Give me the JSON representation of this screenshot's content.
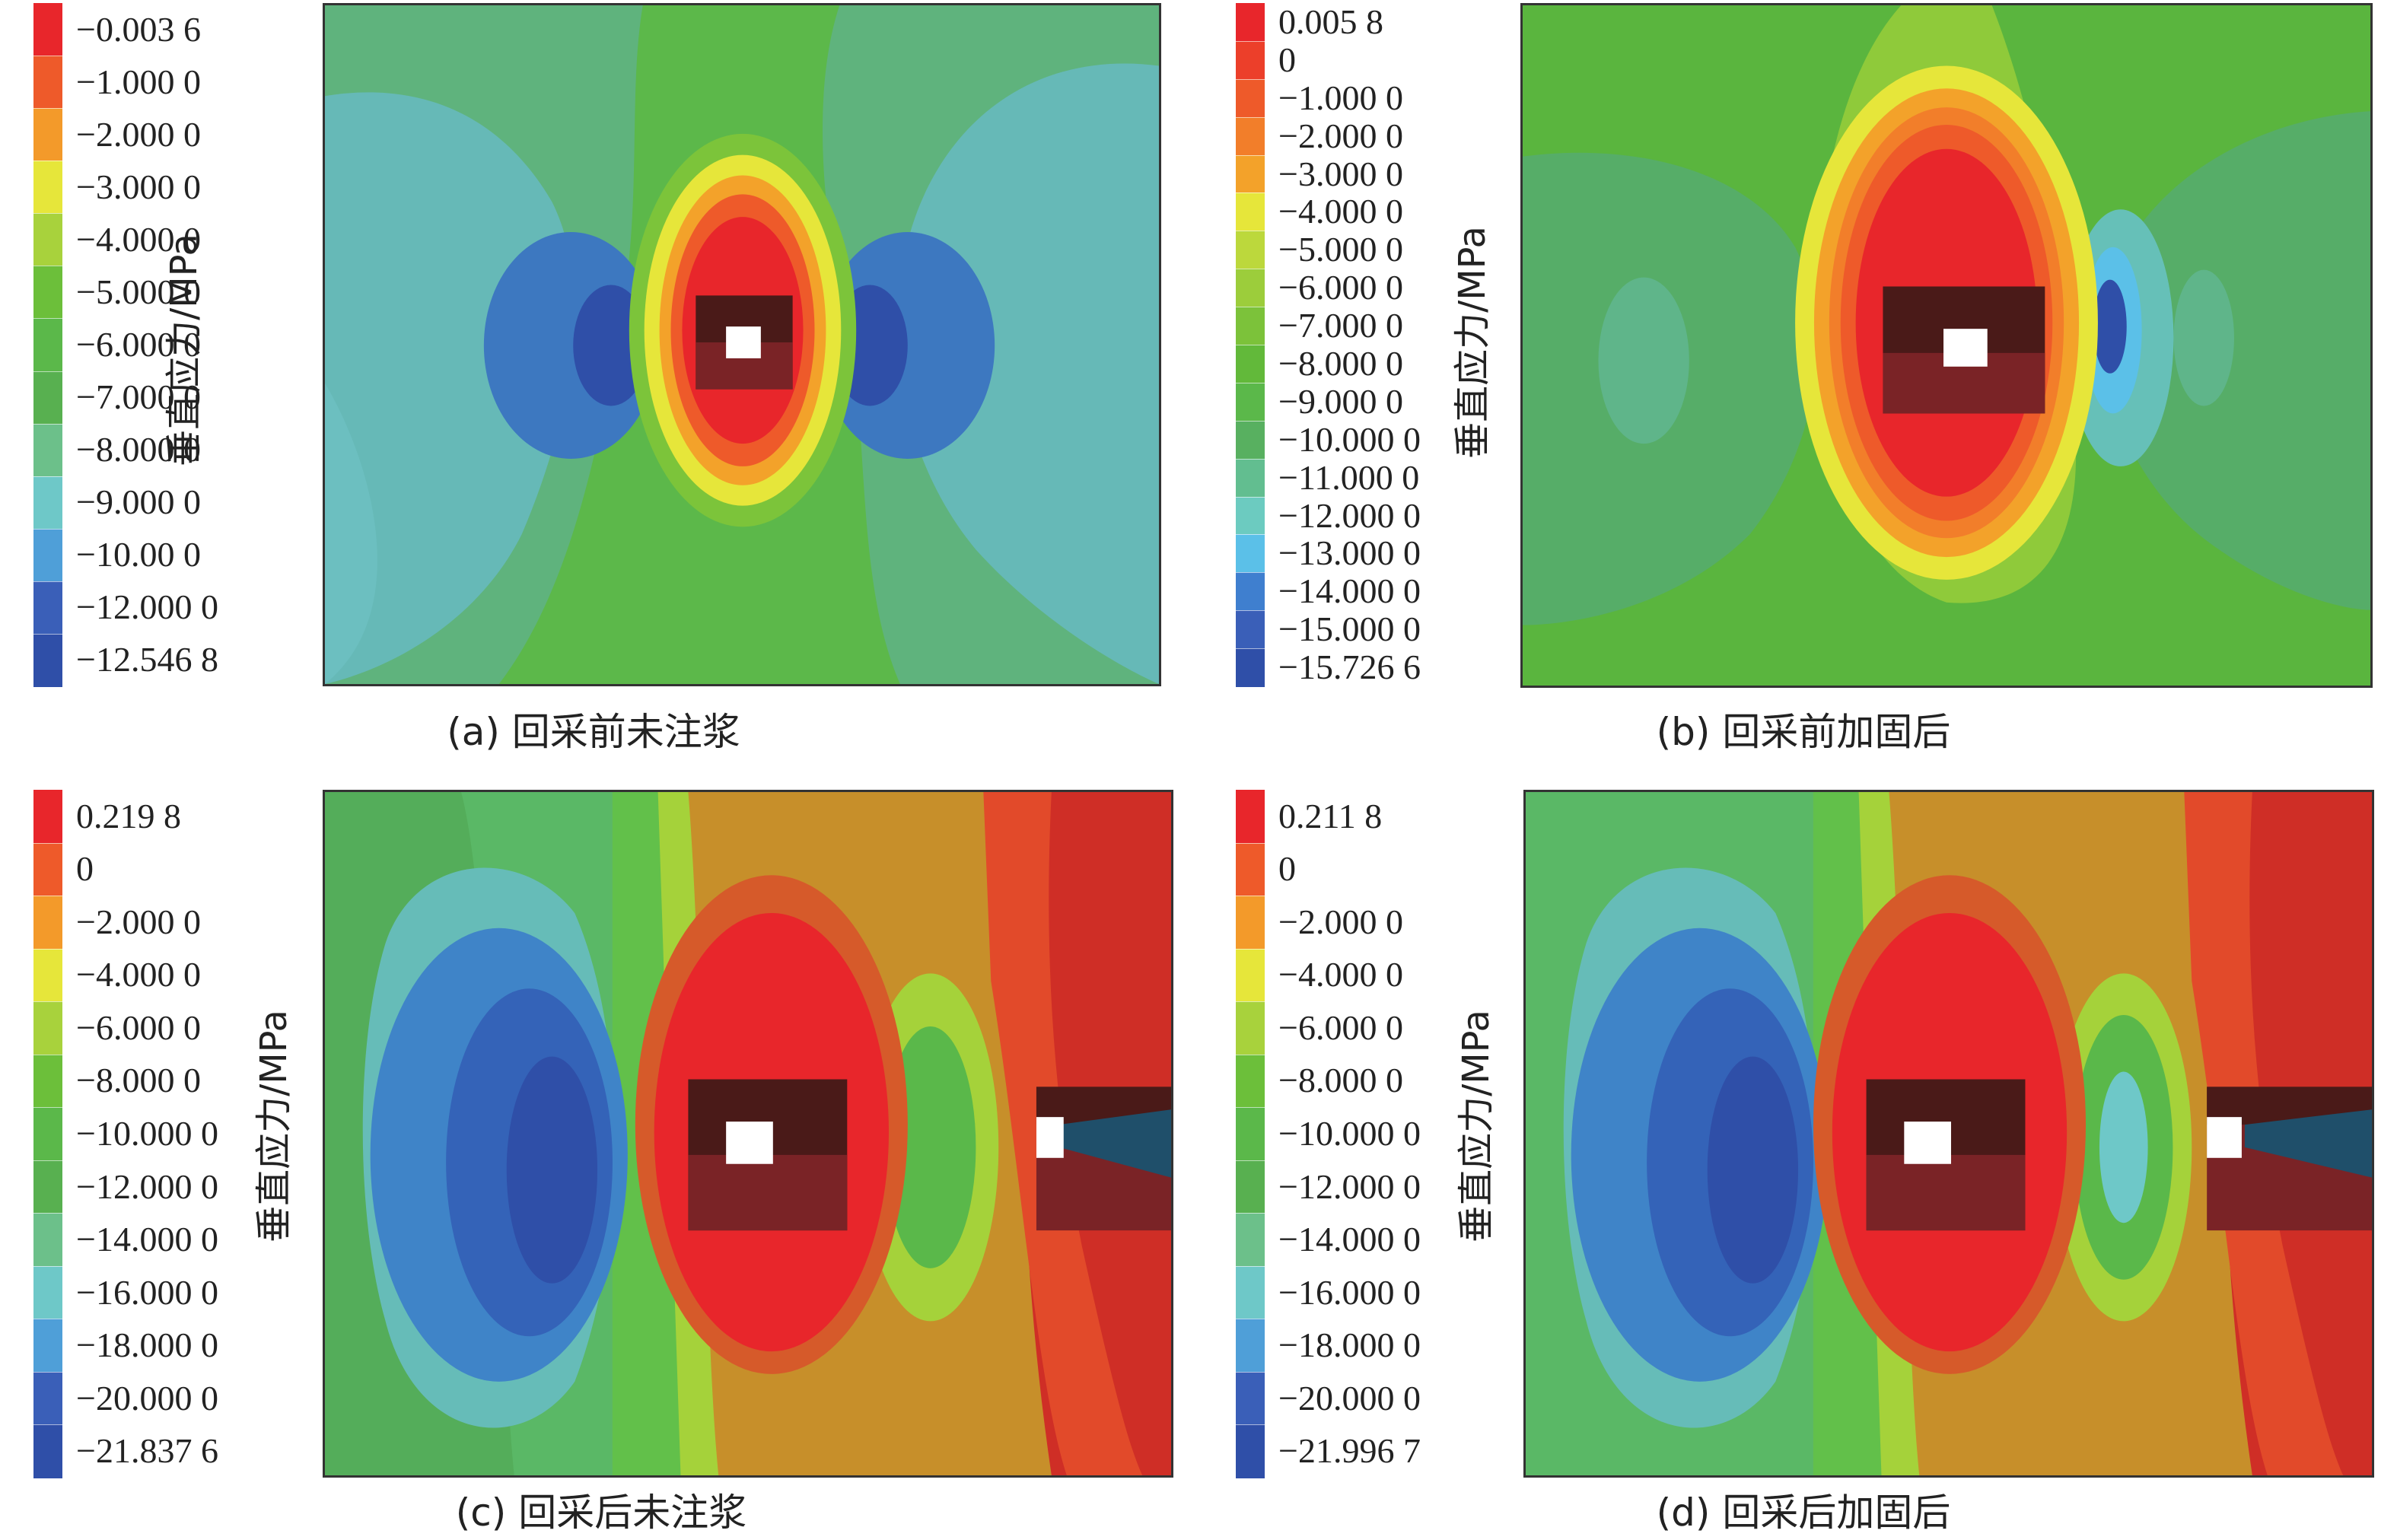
{
  "axis_title": "垂直应力/MPa",
  "panels": [
    {
      "id": "a",
      "caption": "(a) 回采前未注浆",
      "legend_labels": [
        "−0.003 6",
        "−1.000 0",
        "−2.000 0",
        "−3.000 0",
        "−4.000 0",
        "−5.000 0",
        "−6.000 0",
        "−7.000 0",
        "−8.000 0",
        "−9.000 0",
        "−10.00 0",
        "−12.000 0",
        "−12.546 8"
      ],
      "legend_colors": [
        "#e8262b",
        "#ee5a2a",
        "#f39a2a",
        "#e6e63a",
        "#a8d23c",
        "#6cbf3a",
        "#5bb84a",
        "#58b050",
        "#6cc08a",
        "#6ec8c8",
        "#4f9fd8",
        "#3a5fb8",
        "#2f4fa8"
      ]
    },
    {
      "id": "b",
      "caption": "(b) 回采前加固后",
      "legend_labels": [
        "0.005 8",
        "0",
        "−1.000 0",
        "−2.000 0",
        "−3.000 0",
        "−4.000 0",
        "−5.000 0",
        "−6.000 0",
        "−7.000 0",
        "−8.000 0",
        "−9.000 0",
        "−10.000 0",
        "−11.000 0",
        "−12.000 0",
        "−13.000 0",
        "−14.000 0",
        "−15.000 0",
        "−15.726 6"
      ],
      "legend_colors": [
        "#e8262b",
        "#ec3f2a",
        "#ee5a2a",
        "#f27e2a",
        "#f3a22a",
        "#e6e63a",
        "#bcd83c",
        "#9ccd3b",
        "#7cc23a",
        "#62b93a",
        "#5bb84a",
        "#58b060",
        "#62be90",
        "#6ccbc0",
        "#5bc0e8",
        "#3f7fcf",
        "#3a5fb8",
        "#2f4fa8"
      ]
    },
    {
      "id": "c",
      "caption": "(c) 回采后未注浆",
      "legend_labels": [
        "0.219 8",
        "0",
        "−2.000 0",
        "−4.000 0",
        "−6.000 0",
        "−8.000 0",
        "−10.000 0",
        "−12.000 0",
        "−14.000 0",
        "−16.000 0",
        "−18.000 0",
        "−20.000 0",
        "−21.837 6"
      ],
      "legend_colors": [
        "#e8262b",
        "#ee5a2a",
        "#f39a2a",
        "#e6e63a",
        "#a8d23c",
        "#6cbf3a",
        "#5bb84a",
        "#58b050",
        "#6cc08a",
        "#6ec8c8",
        "#4f9fd8",
        "#3a5fb8",
        "#2f4fa8"
      ]
    },
    {
      "id": "d",
      "caption": "(d) 回采后加固后",
      "legend_labels": [
        "0.211 8",
        "0",
        "−2.000 0",
        "−4.000 0",
        "−6.000 0",
        "−8.000 0",
        "−10.000 0",
        "−12.000 0",
        "−14.000 0",
        "−16.000 0",
        "−18.000 0",
        "−20.000 0",
        "−21.996 7"
      ],
      "legend_colors": [
        "#e8262b",
        "#ee5a2a",
        "#f39a2a",
        "#e6e63a",
        "#a8d23c",
        "#6cbf3a",
        "#5bb84a",
        "#58b050",
        "#6cc08a",
        "#6ec8c8",
        "#4f9fd8",
        "#3a5fb8",
        "#2f4fa8"
      ]
    }
  ]
}
